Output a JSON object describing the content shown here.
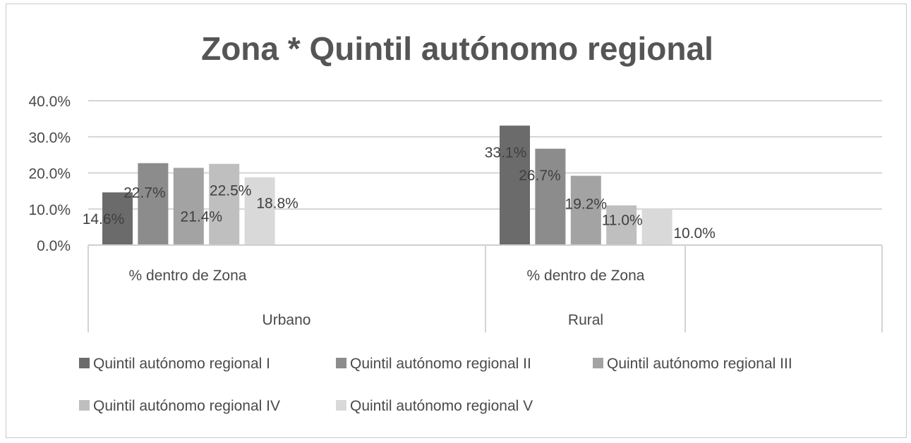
{
  "chart_data": {
    "type": "bar",
    "title": "Zona * Quintil autónomo regional",
    "groups": [
      {
        "category": "% dentro de Zona",
        "group": "Urbano"
      },
      {
        "category": "% dentro de Zona",
        "group": "Rural"
      }
    ],
    "series": [
      {
        "name": "Quintil autónomo regional I",
        "values": [
          14.6,
          33.1
        ],
        "labels": [
          "14.6%",
          "33.1%"
        ],
        "color": "#6b6b6b"
      },
      {
        "name": "Quintil autónomo regional II",
        "values": [
          22.7,
          26.7
        ],
        "labels": [
          "22.7%",
          "26.7%"
        ],
        "color": "#8c8c8c"
      },
      {
        "name": "Quintil autónomo regional III",
        "values": [
          21.4,
          19.2
        ],
        "labels": [
          "21.4%",
          "19.2%"
        ],
        "color": "#a3a3a3"
      },
      {
        "name": "Quintil autónomo regional IV",
        "values": [
          22.5,
          11.0
        ],
        "labels": [
          "22.5%",
          "11.0%"
        ],
        "color": "#bfbfbf"
      },
      {
        "name": "Quintil autónomo regional V",
        "values": [
          18.8,
          10.0
        ],
        "labels": [
          "18.8%",
          "10.0%"
        ],
        "color": "#d9d9d9"
      }
    ],
    "ylim": [
      0,
      40
    ],
    "yticks": [
      "0.0%",
      "10.0%",
      "20.0%",
      "30.0%",
      "40.0%"
    ],
    "ytick_values": [
      0,
      10,
      20,
      30,
      40
    ],
    "grid": true,
    "legend_position": "bottom",
    "xlabel": "",
    "ylabel": ""
  }
}
